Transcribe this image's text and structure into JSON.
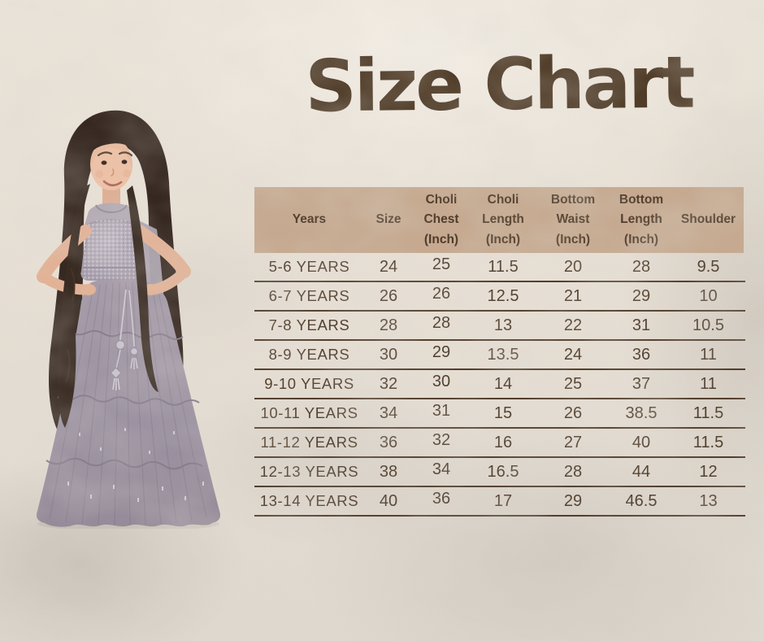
{
  "title": "Size Chart",
  "table": {
    "headers": [
      "Years",
      "Size",
      "Choli\nChest\n(Inch)",
      "Choli\nLength\n(Inch)",
      "Bottom\nWaist\n(Inch)",
      "Bottom\nLength\n(Inch)",
      "Shoulder"
    ],
    "rows": [
      [
        "5-6 YEARS",
        "24",
        "25",
        "11.5",
        "20",
        "28",
        "9.5"
      ],
      [
        "6-7 YEARS",
        "26",
        "26",
        "12.5",
        "21",
        "29",
        "10"
      ],
      [
        "7-8 YEARS",
        "28",
        "28",
        "13",
        "22",
        "31",
        "10.5"
      ],
      [
        "8-9 YEARS",
        "30",
        "29",
        "13.5",
        "24",
        "36",
        "11"
      ],
      [
        "9-10 YEARS",
        "32",
        "30",
        "14",
        "25",
        "37",
        "11"
      ],
      [
        "10-11 YEARS",
        "34",
        "31",
        "15",
        "26",
        "38.5",
        "11.5"
      ],
      [
        "11-12 YEARS",
        "36",
        "32",
        "16",
        "27",
        "40",
        "11.5"
      ],
      [
        "12-13 YEARS",
        "38",
        "34",
        "16.5",
        "28",
        "44",
        "12"
      ],
      [
        "13-14 YEARS",
        "40",
        "36",
        "17",
        "29",
        "46.5",
        "13"
      ]
    ]
  },
  "colors": {
    "background": "#e9e1d6",
    "header_bg": "#c6a98f",
    "text_brown": "#4c3a28",
    "line_brown": "#4f3b29",
    "title_brown": "#4e3a26",
    "dress_mauve": "#9c92a1"
  }
}
